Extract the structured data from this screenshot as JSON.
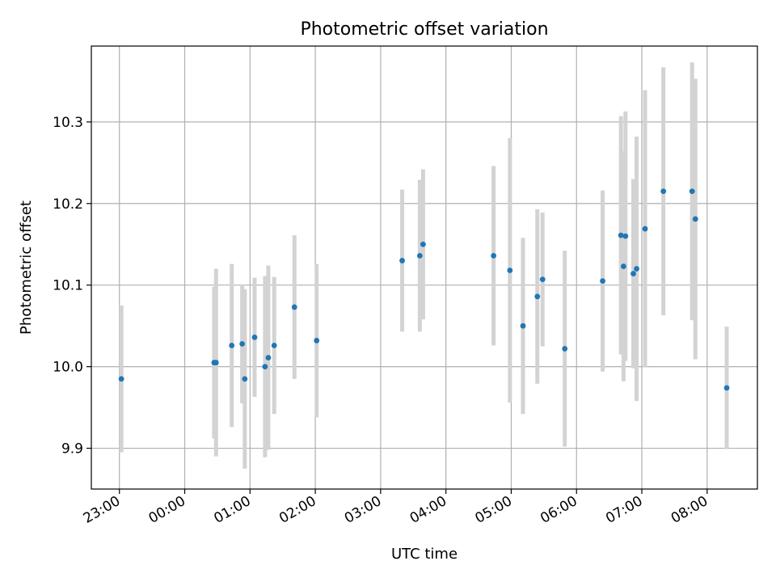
{
  "chart_data": {
    "type": "scatter",
    "title": "Photometric offset variation",
    "xlabel": "UTC time",
    "ylabel": "Photometric offset",
    "x_ticks": [
      "23:00",
      "00:00",
      "01:00",
      "02:00",
      "03:00",
      "04:00",
      "05:00",
      "06:00",
      "07:00",
      "08:00"
    ],
    "xlim": [
      -0.43,
      9.77
    ],
    "y_ticks": [
      "9.9",
      "10.0",
      "10.1",
      "10.2",
      "10.3"
    ],
    "ylim": [
      9.85,
      10.393
    ],
    "grid": true,
    "marker_color": "#1f77b4",
    "errorbar_color": "#d3d3d3",
    "series": [
      {
        "x": [
          0.03,
          1.45,
          1.48,
          1.72,
          1.88,
          1.92,
          2.07,
          2.23,
          2.28,
          2.37,
          2.68,
          3.02,
          4.33,
          4.6,
          4.65,
          5.73,
          5.98,
          6.18,
          6.4,
          6.48,
          6.82,
          7.4,
          7.68,
          7.72,
          7.75,
          7.87,
          7.92,
          8.05,
          8.33,
          8.77,
          8.82,
          9.3
        ],
        "y": [
          9.985,
          10.005,
          10.005,
          10.026,
          10.028,
          9.985,
          10.036,
          10.0,
          10.011,
          10.026,
          10.073,
          10.032,
          10.13,
          10.136,
          10.15,
          10.136,
          10.118,
          10.05,
          10.086,
          10.107,
          10.022,
          10.105,
          10.161,
          10.123,
          10.16,
          10.114,
          10.12,
          10.169,
          10.215,
          10.215,
          10.181,
          9.974
        ],
        "err": [
          0.09,
          0.093,
          0.115,
          0.1,
          0.073,
          0.11,
          0.073,
          0.111,
          0.113,
          0.084,
          0.088,
          0.094,
          0.087,
          0.093,
          0.092,
          0.11,
          0.162,
          0.108,
          0.107,
          0.082,
          0.12,
          0.111,
          0.146,
          0.141,
          0.153,
          0.116,
          0.162,
          0.17,
          0.152,
          0.158,
          0.172,
          0.075
        ]
      }
    ]
  }
}
